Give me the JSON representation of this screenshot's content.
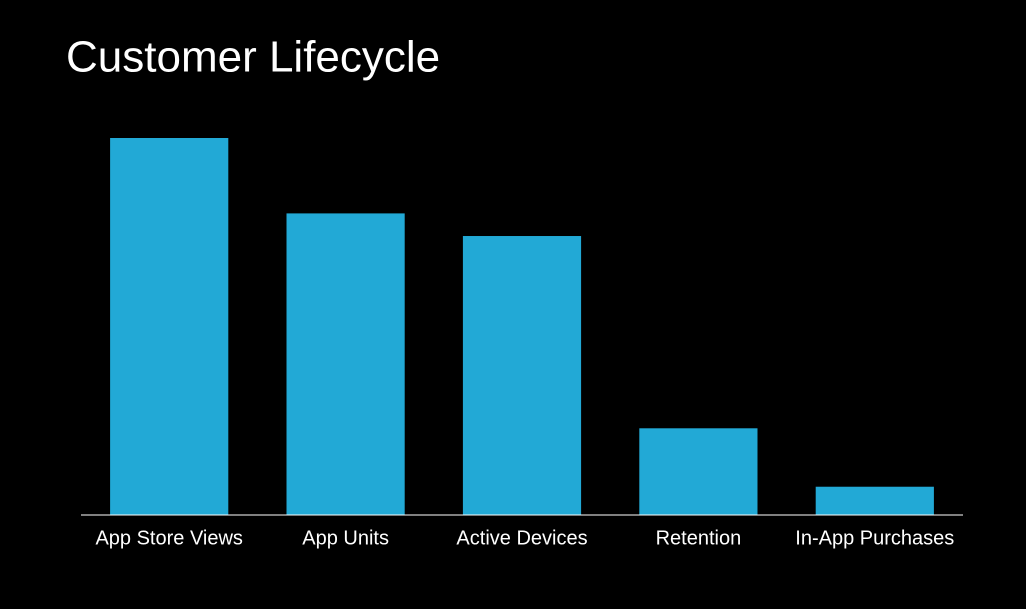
{
  "chart_data": {
    "type": "bar",
    "title": "Customer Lifecycle",
    "categories": [
      "App Store Views",
      "App Units",
      "Active Devices",
      "Retention",
      "In-App Purchases"
    ],
    "values": [
      100,
      80,
      74,
      23,
      7.5
    ],
    "color": "#22a9d6",
    "ylim": [
      0,
      100
    ]
  }
}
